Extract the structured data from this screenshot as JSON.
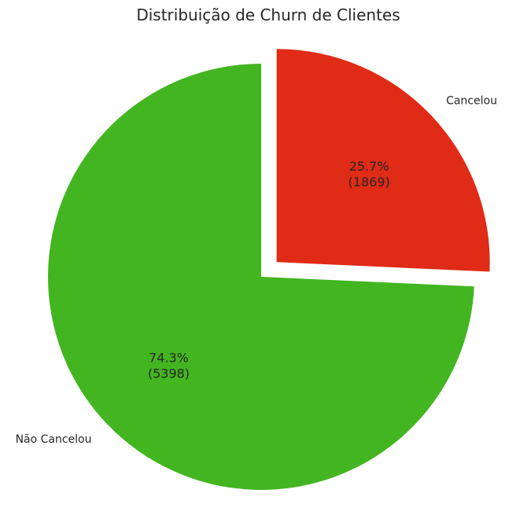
{
  "chart_data": {
    "type": "pie",
    "title": "Distribuição de Churn de Clientes",
    "start_angle_deg": 90,
    "direction": "counterclockwise",
    "slices": [
      {
        "label": "Não Cancelou",
        "value": 5398,
        "percent_label": "74.3%",
        "count_label": "(5398)",
        "color": "#43b521",
        "explode": 0
      },
      {
        "label": "Cancelou",
        "value": 1869,
        "percent_label": "25.7%",
        "count_label": "(1869)",
        "color": "#e02b17",
        "explode": 0.1
      }
    ],
    "legend": "none",
    "grid": false
  }
}
